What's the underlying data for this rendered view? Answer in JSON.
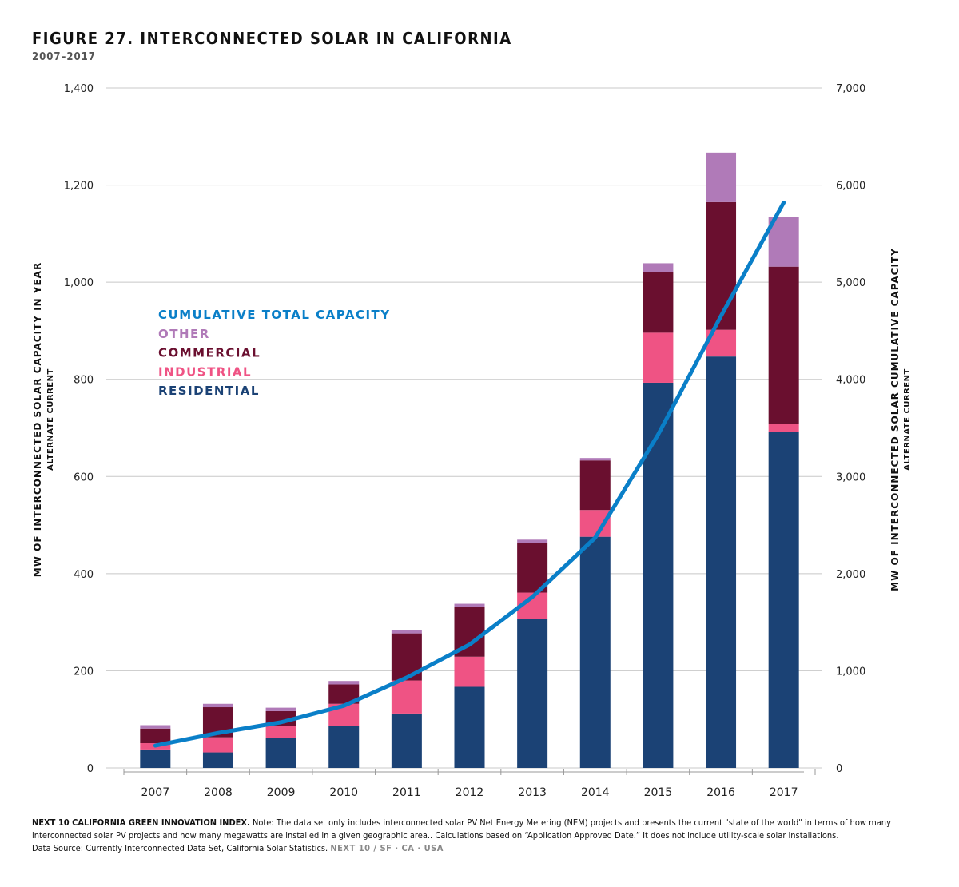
{
  "title": "FIGURE 27. INTERCONNECTED SOLAR IN CALIFORNIA",
  "subtitle": "2007–2017",
  "chart_data": {
    "type": "bar",
    "stacked": true,
    "categories": [
      "2007",
      "2008",
      "2009",
      "2010",
      "2011",
      "2012",
      "2013",
      "2014",
      "2015",
      "2016",
      "2017"
    ],
    "series": [
      {
        "name": "RESIDENTIAL",
        "color": "#1b4275",
        "values": [
          38,
          32,
          62,
          87,
          112,
          167,
          306,
          476,
          793,
          847,
          691
        ]
      },
      {
        "name": "INDUSTRIAL",
        "color": "#ef5384",
        "values": [
          13,
          31,
          25,
          45,
          68,
          62,
          55,
          55,
          103,
          55,
          18
        ]
      },
      {
        "name": "COMMERCIAL",
        "color": "#6a0f2f",
        "values": [
          30,
          62,
          30,
          40,
          97,
          102,
          102,
          102,
          125,
          263,
          323
        ]
      },
      {
        "name": "OTHER",
        "color": "#b07ab8",
        "values": [
          7,
          7,
          7,
          7,
          7,
          7,
          7,
          5,
          18,
          102,
          103
        ]
      }
    ],
    "line_series": {
      "name": "CUMULATIVE TOTAL CAPACITY",
      "color": "#0a7fc8",
      "axis": "right",
      "values": [
        230,
        360,
        470,
        640,
        930,
        1270,
        1760,
        2370,
        3430,
        4650,
        5820
      ]
    },
    "legend_order": [
      "CUMULATIVE TOTAL CAPACITY",
      "OTHER",
      "COMMERCIAL",
      "INDUSTRIAL",
      "RESIDENTIAL"
    ],
    "legend_placement": "upper-left",
    "y_left": {
      "label": "MW OF INTERCONNECTED SOLAR CAPACITY IN YEAR",
      "sublabel": "ALTERNATE CURRENT",
      "lim": [
        0,
        1400
      ],
      "ticks": [
        "0",
        "200",
        "400",
        "600",
        "800",
        "1,000",
        "1,200",
        "1,400"
      ]
    },
    "y_right": {
      "label": "MW OF INTERCONNECTED SOLAR CUMULATIVE CAPACITY",
      "sublabel": "ALTERNATE CURRENT",
      "lim": [
        0,
        7000
      ],
      "ticks": [
        "0",
        "1,000",
        "2,000",
        "3,000",
        "4,000",
        "5,000",
        "6,000",
        "7,000"
      ]
    },
    "grid": true
  },
  "footnote": {
    "brand_lead": "NEXT 10 CALIFORNIA GREEN INNOVATION INDEX.",
    "note": " Note: The data set only includes interconnected solar PV Net Energy Metering (NEM) projects and presents the current \"state of the world\" in terms of how many interconnected solar PV projects and how many megawatts are installed in a given geographic area.. Calculations based on “Application Approved Date.” It does not include utility-scale solar installations.",
    "source": "Data Source: Currently Interconnected Data Set, California Solar Statistics. ",
    "brand_tail": "NEXT 10  /  SF · CA · USA"
  }
}
